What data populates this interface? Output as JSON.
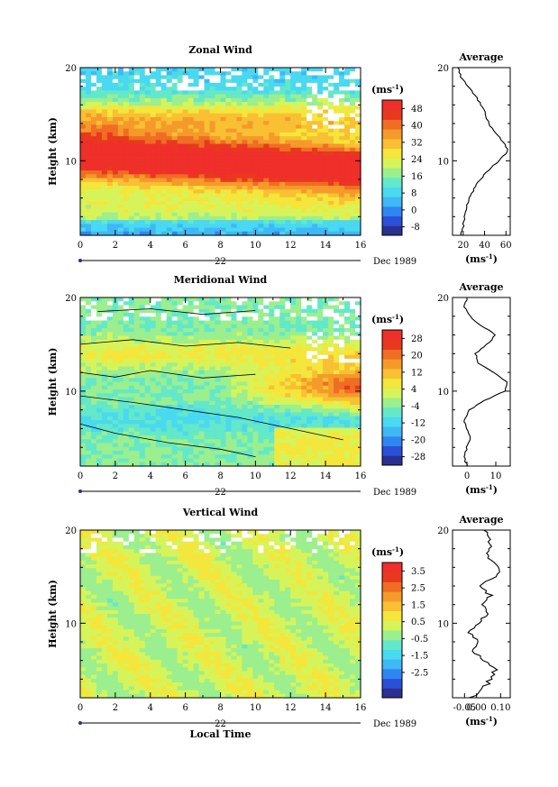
{
  "chart_data": [
    {
      "type": "heatmap",
      "title": "Zonal Wind",
      "ylabel": "Height (km)",
      "xlim": [
        0,
        16
      ],
      "ylim": [
        2,
        20
      ],
      "x_ticks": [
        "0",
        "2",
        "4",
        "6",
        "8",
        "10",
        "12",
        "14",
        "16"
      ],
      "y_ticks": [
        "10",
        "20"
      ],
      "date_tick": "22",
      "date_label": "Dec 1989",
      "colorbar": {
        "unit": "(ms",
        "unit_sup": "-1",
        "unit_close": ")",
        "ticks": [
          "48",
          "40",
          "32",
          "24",
          "16",
          "8",
          "0",
          "-8"
        ],
        "min": -12,
        "max": 52
      },
      "profile": {
        "title": "Average",
        "xlabel": "(ms",
        "xlabel_sup": "-1",
        "xlabel_close": ")",
        "x_ticks": [
          "20",
          "40",
          "60"
        ],
        "xlim": [
          10,
          64
        ],
        "y_ticks": [
          "10",
          "20"
        ],
        "points": [
          [
            18,
            2
          ],
          [
            20,
            3
          ],
          [
            21,
            4
          ],
          [
            23,
            5
          ],
          [
            26,
            6
          ],
          [
            30,
            7
          ],
          [
            36,
            8
          ],
          [
            44,
            9
          ],
          [
            53,
            10
          ],
          [
            62,
            11
          ],
          [
            58,
            12
          ],
          [
            50,
            13
          ],
          [
            44,
            14
          ],
          [
            41,
            15
          ],
          [
            37,
            16
          ],
          [
            31,
            17
          ],
          [
            24,
            18
          ],
          [
            18,
            19
          ],
          [
            15,
            20
          ]
        ]
      }
    },
    {
      "type": "heatmap",
      "title": "Meridional Wind",
      "ylabel": "Height (km)",
      "xlim": [
        0,
        16
      ],
      "ylim": [
        2,
        20
      ],
      "x_ticks": [
        "0",
        "2",
        "4",
        "6",
        "8",
        "10",
        "12",
        "14",
        "16"
      ],
      "y_ticks": [
        "10",
        "20"
      ],
      "date_tick": "22",
      "date_label": "Dec 1989",
      "colorbar": {
        "unit": "(ms",
        "unit_sup": "-1",
        "unit_close": ")",
        "ticks": [
          "28",
          "20",
          "12",
          "4",
          "-4",
          "-12",
          "-20",
          "-28"
        ],
        "min": -32,
        "max": 32
      },
      "profile": {
        "title": "Average",
        "xlabel": "(ms",
        "xlabel_sup": "-1",
        "xlabel_close": ")",
        "x_ticks": [
          "0",
          "10"
        ],
        "xlim": [
          -5,
          15
        ],
        "y_ticks": [
          "10",
          "20"
        ],
        "points": [
          [
            0,
            2
          ],
          [
            -1,
            3
          ],
          [
            0,
            4
          ],
          [
            1,
            5
          ],
          [
            0,
            6
          ],
          [
            -1,
            7
          ],
          [
            1,
            8
          ],
          [
            6,
            9
          ],
          [
            13,
            10
          ],
          [
            14,
            11
          ],
          [
            9,
            12
          ],
          [
            4,
            13
          ],
          [
            3,
            14
          ],
          [
            7,
            15
          ],
          [
            10,
            16
          ],
          [
            5,
            17
          ],
          [
            1,
            18
          ],
          [
            -1,
            19
          ],
          [
            0,
            20
          ]
        ]
      }
    },
    {
      "type": "heatmap",
      "title": "Vertical Wind",
      "ylabel": "Height (km)",
      "xlabel": "Local Time",
      "xlim": [
        0,
        16
      ],
      "ylim": [
        2,
        20
      ],
      "x_ticks": [
        "0",
        "2",
        "4",
        "6",
        "8",
        "10",
        "12",
        "14",
        "16"
      ],
      "y_ticks": [
        "10",
        "20"
      ],
      "date_tick": "22",
      "date_label": "Dec 1989",
      "colorbar": {
        "unit": "(ms",
        "unit_sup": "-1",
        "unit_close": ")",
        "ticks": [
          "3.5",
          "2.5",
          "1.5",
          "0.5",
          "-0.5",
          "-1.5",
          "-2.5"
        ],
        "min": -4.0,
        "max": 4.0
      },
      "profile": {
        "title": "Average",
        "xlabel": "(ms",
        "xlabel_sup": "-1",
        "xlabel_close": ")",
        "x_ticks": [
          "-0.05",
          "0.00",
          "0.10"
        ],
        "xlim": [
          -0.1,
          0.14
        ],
        "y_ticks": [
          "10",
          "20"
        ],
        "points": [
          [
            -0.02,
            2
          ],
          [
            0.03,
            3
          ],
          [
            0.06,
            4
          ],
          [
            0.08,
            5
          ],
          [
            0.03,
            6
          ],
          [
            -0.01,
            7
          ],
          [
            0.01,
            8
          ],
          [
            -0.03,
            9
          ],
          [
            0.0,
            10
          ],
          [
            0.05,
            11
          ],
          [
            0.02,
            12
          ],
          [
            0.06,
            13
          ],
          [
            0.01,
            14
          ],
          [
            0.07,
            15
          ],
          [
            0.1,
            16
          ],
          [
            0.04,
            17
          ],
          [
            0.06,
            18
          ],
          [
            0.05,
            19
          ],
          [
            0.03,
            20
          ]
        ]
      }
    }
  ]
}
